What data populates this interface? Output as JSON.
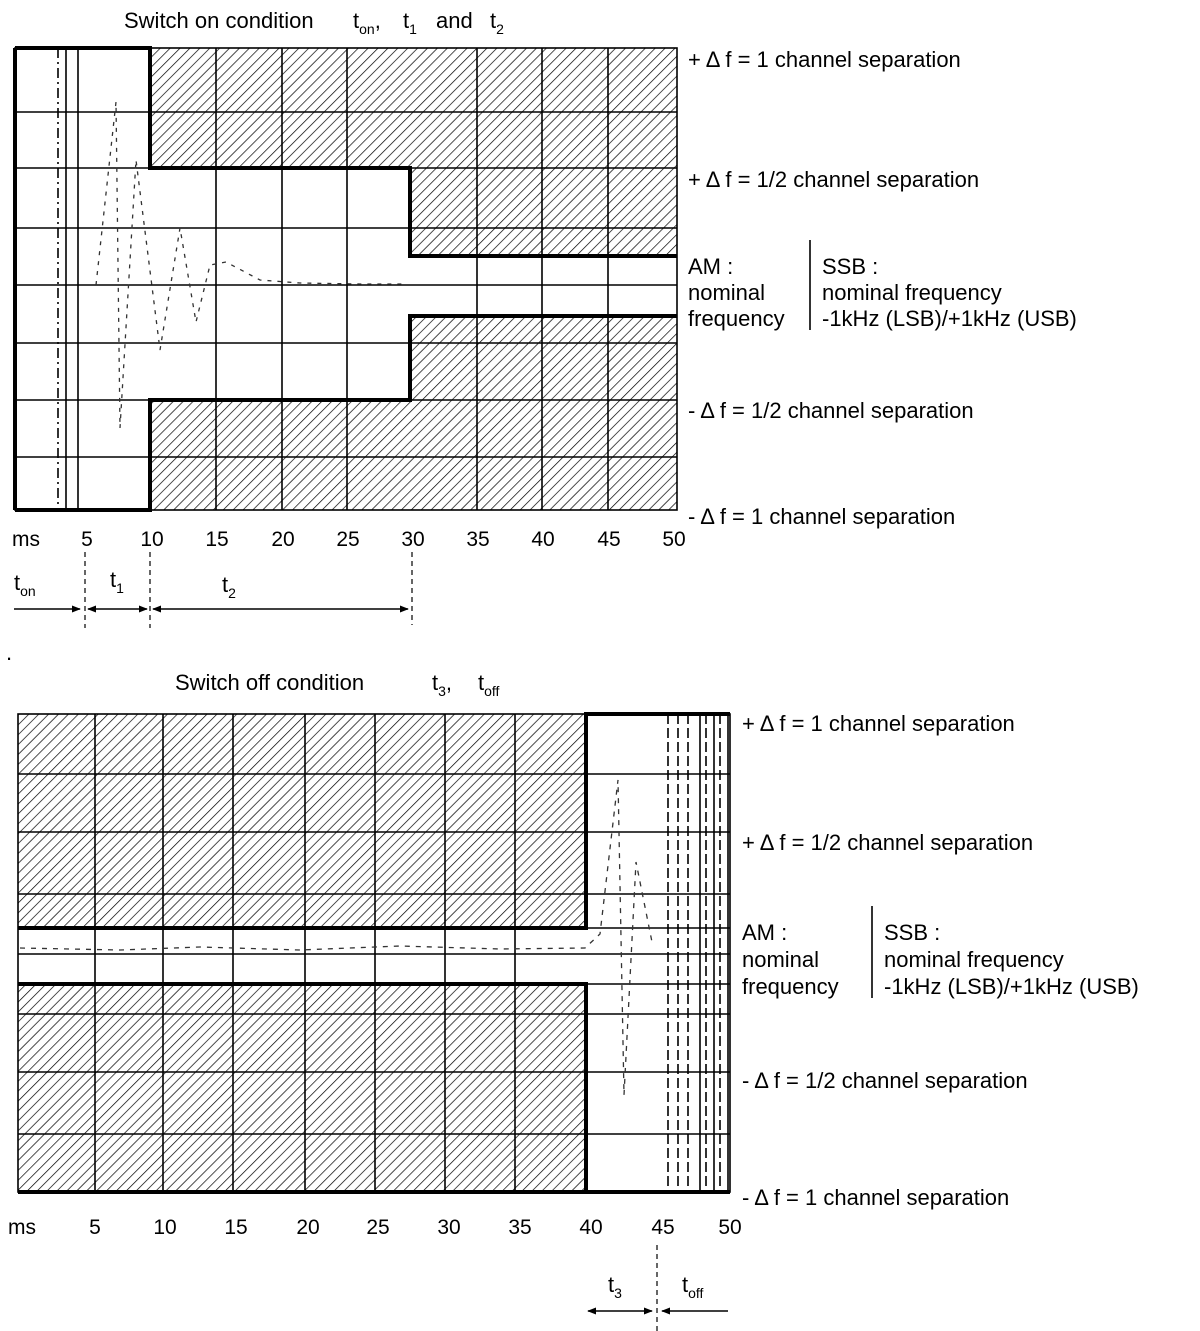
{
  "top": {
    "title": {
      "main": "Switch on condition",
      "s1": "t",
      "s1_sub": "on",
      "c1": ",",
      "s2": "t",
      "s2_sub": "1",
      "and": "and",
      "s3": "t",
      "s3_sub": "2"
    },
    "labels": {
      "plus_one": "+ Δ f = 1 channel separation",
      "plus_half": "+ Δ f = 1/2 channel separation",
      "minus_half": "- Δ f = 1/2 channel separation",
      "minus_one": "- Δ f = 1 channel separation"
    },
    "center": {
      "am_1": "AM :",
      "am_2": "nominal",
      "am_3": "frequency",
      "ssb_1": "SSB :",
      "ssb_2": "nominal frequency",
      "ssb_3": "-1kHz (LSB)/+1kHz (USB)"
    },
    "axis_unit": "ms",
    "ticks": [
      "5",
      "10",
      "15",
      "20",
      "25",
      "30",
      "35",
      "40",
      "45",
      "50"
    ],
    "intervals": {
      "ton": "t",
      "ton_sub": "on",
      "t1": "t",
      "t1_sub": "1",
      "t2": "t",
      "t2_sub": "2"
    }
  },
  "bottom": {
    "title": {
      "main": "Switch off condition",
      "s1": "t",
      "s1_sub": "3",
      "c1": ",",
      "s2": "t",
      "s2_sub": "off"
    },
    "labels": {
      "plus_one": "+ Δ f = 1 channel separation",
      "plus_half": "+ Δ f = 1/2 channel separation",
      "minus_half": "- Δ f = 1/2 channel separation",
      "minus_one": "- Δ f = 1 channel separation"
    },
    "center": {
      "am_1": "AM :",
      "am_2": "nominal",
      "am_3": "frequency",
      "ssb_1": "SSB :",
      "ssb_2": "nominal frequency",
      "ssb_3": "-1kHz (LSB)/+1kHz (USB)"
    },
    "axis_unit": "ms",
    "ticks": [
      "5",
      "10",
      "15",
      "20",
      "25",
      "30",
      "35",
      "40",
      "45",
      "50"
    ],
    "intervals": {
      "t3": "t",
      "t3_sub": "3",
      "toff": "t",
      "toff_sub": "off"
    }
  },
  "stray_mark": "."
}
